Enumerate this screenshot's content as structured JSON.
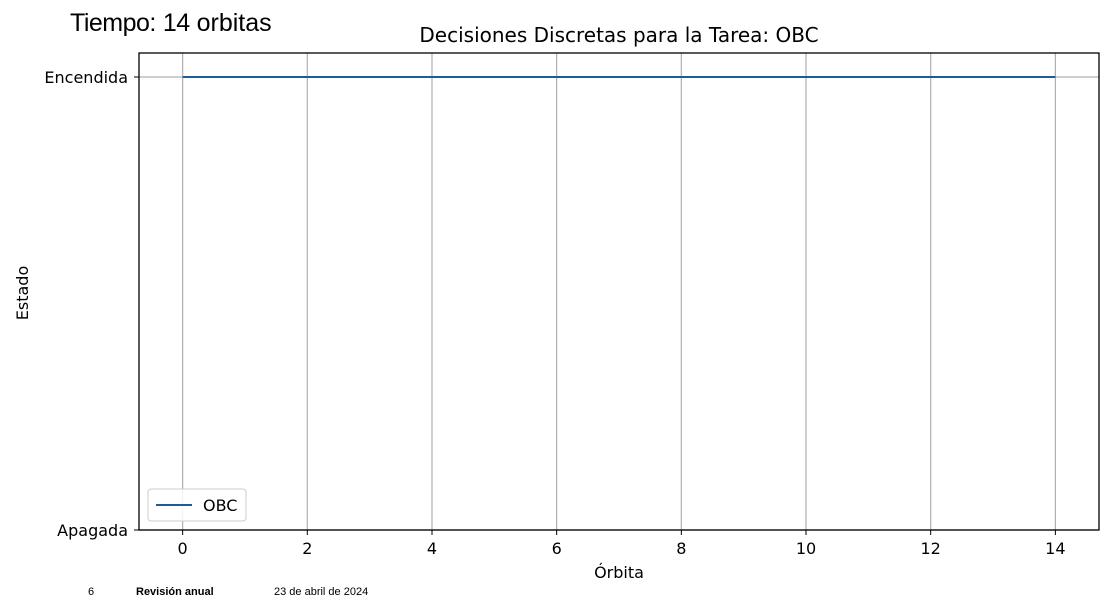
{
  "slide": {
    "heading_label": "Tiempo:",
    "heading_value": "14",
    "heading_unit": "orbitas"
  },
  "footer": {
    "page_number": "6",
    "title": "Revisión anual",
    "date": "23 de abril de 2024"
  },
  "chart_data": {
    "type": "line",
    "title": "Decisiones Discretas para la Tarea: OBC",
    "xlabel": "Órbita",
    "ylabel": "Estado",
    "xlim": [
      -0.7,
      14.7
    ],
    "ylim": [
      0,
      1
    ],
    "xticks": [
      0,
      2,
      4,
      6,
      8,
      10,
      12,
      14
    ],
    "yticks": [
      0,
      1
    ],
    "ytick_labels": [
      "Apagada",
      "Encendida"
    ],
    "grid": true,
    "legend_position": "lower-left",
    "series": [
      {
        "name": "OBC",
        "color": "#1f5a9b",
        "x": [
          0,
          1,
          2,
          3,
          4,
          5,
          6,
          7,
          8,
          9,
          10,
          11,
          12,
          13,
          14
        ],
        "y": [
          1,
          1,
          1,
          1,
          1,
          1,
          1,
          1,
          1,
          1,
          1,
          1,
          1,
          1,
          1
        ]
      }
    ]
  }
}
